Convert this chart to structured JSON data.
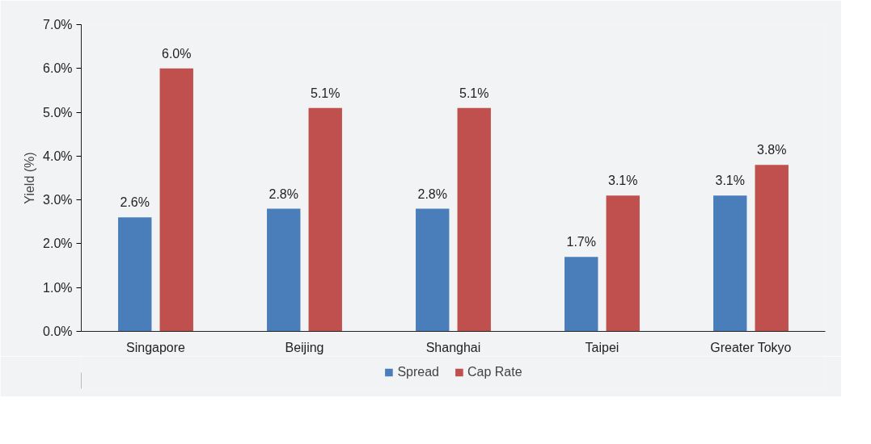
{
  "chart_data": {
    "type": "bar",
    "ylabel": "Yield (%)",
    "categories": [
      "Singapore",
      "Beijing",
      "Shanghai",
      "Taipei",
      "Greater Tokyo"
    ],
    "series": [
      {
        "name": "Spread",
        "color": "#4a7ebb",
        "values": [
          2.6,
          2.8,
          2.8,
          1.7,
          3.1
        ],
        "value_labels": [
          "2.6%",
          "2.8%",
          "2.8%",
          "1.7%",
          "3.1%"
        ]
      },
      {
        "name": "Cap Rate",
        "color": "#c0504d",
        "values": [
          6.0,
          5.1,
          5.1,
          3.1,
          3.8
        ],
        "value_labels": [
          "6.0%",
          "5.1%",
          "5.1%",
          "3.1%",
          "3.8%"
        ]
      }
    ],
    "ylim": [
      0,
      7
    ],
    "yticks": [
      {
        "value": 0,
        "label": "0.0%"
      },
      {
        "value": 1,
        "label": "1.0%"
      },
      {
        "value": 2,
        "label": "2.0%"
      },
      {
        "value": 3,
        "label": "3.0%"
      },
      {
        "value": 4,
        "label": "4.0%"
      },
      {
        "value": 5,
        "label": "5.0%"
      },
      {
        "value": 6,
        "label": "6.0%"
      },
      {
        "value": 7,
        "label": "7.0%"
      }
    ],
    "grid": false,
    "legend": "bottom"
  }
}
